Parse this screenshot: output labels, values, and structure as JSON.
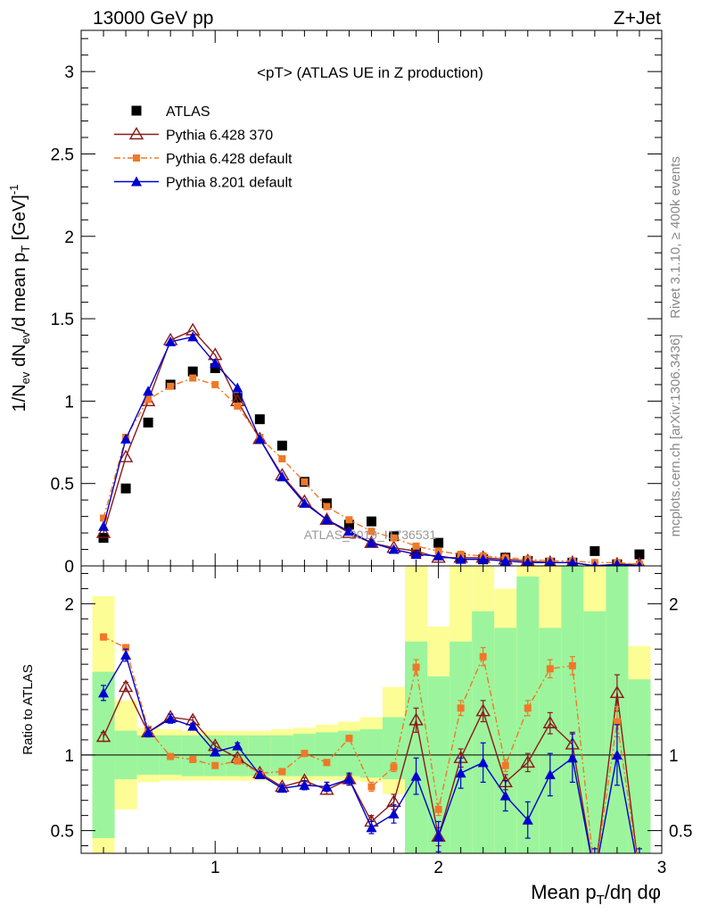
{
  "header": {
    "left": "13000 GeV pp",
    "right": "Z+Jet"
  },
  "side_labels": {
    "upper": "Rivet 3.1.10, ≥ 400k events",
    "lower": "mcplots.cern.ch [arXiv:1306.3436]"
  },
  "watermark": "ATLAS_2019_I1736531",
  "chart_data": [
    {
      "type": "line",
      "title": "<pT> (ATLAS UE in Z production)",
      "xlabel": "Mean p_T/dη dφ",
      "ylabel": "1/N_ev dN_ev/d mean p_T [GeV]^-1",
      "xlim": [
        0.4,
        3.0
      ],
      "ylim": [
        0,
        3.25
      ],
      "x_ticks": [
        "1",
        "2",
        "3"
      ],
      "y_ticks": [
        "0",
        "0.5",
        "1",
        "1.5",
        "2",
        "2.5",
        "3"
      ],
      "legend_position": "top-left",
      "x": [
        0.5,
        0.6,
        0.7,
        0.8,
        0.9,
        1.0,
        1.1,
        1.2,
        1.3,
        1.4,
        1.5,
        1.6,
        1.7,
        1.8,
        1.9,
        2.0,
        2.1,
        2.2,
        2.3,
        2.4,
        2.5,
        2.6,
        2.7,
        2.8,
        2.9
      ],
      "series": [
        {
          "name": "ATLAS",
          "style": "data",
          "color": "#000000",
          "values": [
            0.17,
            0.47,
            0.87,
            1.1,
            1.18,
            1.2,
            1.02,
            0.89,
            0.73,
            0.51,
            0.38,
            0.25,
            0.27,
            0.18,
            0.08,
            0.14,
            0.05,
            0.04,
            0.05,
            0.03,
            0.02,
            0.02,
            0.09,
            0.01,
            0.07
          ]
        },
        {
          "name": "Pythia 6.428 370",
          "style": "open-triangle",
          "color": "#8b1a1a",
          "values": [
            0.2,
            0.66,
            1.0,
            1.37,
            1.43,
            1.28,
            1.0,
            0.77,
            0.55,
            0.39,
            0.28,
            0.2,
            0.14,
            0.11,
            0.09,
            0.05,
            0.05,
            0.05,
            0.04,
            0.03,
            0.02,
            0.02,
            0.0,
            0.01,
            0.01
          ]
        },
        {
          "name": "Pythia 6.428 default",
          "style": "dash-square",
          "color": "#f07828",
          "values": [
            0.29,
            0.78,
            1.01,
            1.09,
            1.14,
            1.1,
            0.97,
            0.78,
            0.65,
            0.51,
            0.36,
            0.28,
            0.21,
            0.17,
            0.12,
            0.09,
            0.07,
            0.06,
            0.05,
            0.04,
            0.03,
            0.03,
            0.02,
            0.02,
            0.01
          ]
        },
        {
          "name": "Pythia 8.201 default",
          "style": "filled-triangle",
          "color": "#0000d0",
          "values": [
            0.24,
            0.77,
            1.06,
            1.36,
            1.39,
            1.23,
            1.08,
            0.77,
            0.54,
            0.38,
            0.28,
            0.21,
            0.14,
            0.1,
            0.07,
            0.06,
            0.04,
            0.04,
            0.03,
            0.02,
            0.02,
            0.02,
            0.0,
            0.01,
            0.0
          ]
        }
      ]
    },
    {
      "type": "line",
      "ylabel": "Ratio to ATLAS",
      "xlabel": "Mean p_T/dη dφ",
      "xlim": [
        0.4,
        3.0
      ],
      "ylim": [
        0.35,
        2.25
      ],
      "x_ticks": [
        "1",
        "2",
        "3"
      ],
      "y_ticks": [
        "0.5",
        "1",
        "2"
      ],
      "reference_line": 1,
      "bands": {
        "green_color": "#9cf59c",
        "yellow_color": "#fdfd96",
        "green_lo": [
          0.45,
          0.84,
          0.87,
          0.87,
          0.86,
          0.86,
          0.86,
          0.86,
          0.86,
          0.86,
          0.86,
          0.86,
          0.85,
          0.84,
          0.35,
          0.35,
          0.35,
          0.35,
          0.35,
          0.35,
          0.35,
          0.35,
          0.35,
          0.35,
          0.35
        ],
        "green_hi": [
          1.55,
          1.16,
          1.13,
          1.13,
          1.13,
          1.13,
          1.13,
          1.13,
          1.13,
          1.14,
          1.15,
          1.16,
          1.17,
          1.25,
          1.75,
          1.52,
          1.75,
          1.95,
          1.84,
          2.18,
          1.84,
          2.25,
          1.95,
          2.25,
          1.5
        ],
        "yellow_lo": [
          0.35,
          0.64,
          0.82,
          0.83,
          0.83,
          0.83,
          0.83,
          0.83,
          0.83,
          0.83,
          0.83,
          0.83,
          0.82,
          0.74,
          0.35,
          0.35,
          0.35,
          0.35,
          0.35,
          0.35,
          0.35,
          0.35,
          0.35,
          0.35,
          0.35
        ],
        "yellow_hi": [
          2.05,
          1.36,
          1.18,
          1.17,
          1.16,
          1.16,
          1.16,
          1.16,
          1.17,
          1.18,
          1.2,
          1.22,
          1.25,
          1.45,
          2.25,
          1.85,
          2.25,
          2.25,
          2.1,
          2.25,
          2.25,
          2.25,
          2.25,
          2.25,
          1.72
        ]
      },
      "series": [
        {
          "name": "Pythia 6.428 370",
          "color": "#8b1a1a",
          "values": [
            1.12,
            1.45,
            1.15,
            1.25,
            1.23,
            1.06,
            0.98,
            0.88,
            0.79,
            0.83,
            0.77,
            0.84,
            0.56,
            0.69,
            1.23,
            0.46,
            0.98,
            1.29,
            0.82,
            0.95,
            1.21,
            1.07,
            0.2,
            1.41,
            0.2
          ],
          "errors": [
            0.03,
            0.03,
            0.02,
            0.02,
            0.02,
            0.02,
            0.02,
            0.02,
            0.02,
            0.02,
            0.03,
            0.03,
            0.04,
            0.05,
            0.08,
            0.06,
            0.06,
            0.07,
            0.05,
            0.06,
            0.07,
            0.08,
            0.1,
            0.12,
            0.1
          ]
        },
        {
          "name": "Pythia 6.428 default",
          "color": "#f07828",
          "values": [
            1.78,
            1.71,
            1.17,
            0.99,
            0.97,
            0.93,
            0.96,
            0.88,
            0.89,
            1.01,
            0.95,
            1.11,
            0.79,
            0.92,
            1.58,
            0.64,
            1.31,
            1.65,
            0.93,
            1.31,
            1.57,
            1.59,
            0.2,
            1.22,
            0.2
          ],
          "errors": [
            0.02,
            0.02,
            0.02,
            0.01,
            0.01,
            0.01,
            0.01,
            0.01,
            0.01,
            0.02,
            0.02,
            0.02,
            0.03,
            0.03,
            0.05,
            0.04,
            0.05,
            0.06,
            0.04,
            0.05,
            0.06,
            0.06,
            0.08,
            0.1,
            0.08
          ]
        },
        {
          "name": "Pythia 8.201 default",
          "color": "#0000d0",
          "values": [
            1.41,
            1.66,
            1.15,
            1.24,
            1.19,
            1.02,
            1.06,
            0.87,
            0.78,
            0.8,
            0.79,
            0.84,
            0.52,
            0.61,
            0.86,
            0.46,
            0.88,
            0.95,
            0.73,
            0.57,
            0.87,
            0.98,
            0.2,
            1.0,
            0.2
          ],
          "errors": [
            0.05,
            0.04,
            0.03,
            0.03,
            0.02,
            0.02,
            0.02,
            0.02,
            0.02,
            0.03,
            0.03,
            0.04,
            0.04,
            0.06,
            0.12,
            0.1,
            0.1,
            0.13,
            0.1,
            0.12,
            0.14,
            0.16,
            0.18,
            0.2,
            0.18
          ]
        }
      ]
    }
  ]
}
